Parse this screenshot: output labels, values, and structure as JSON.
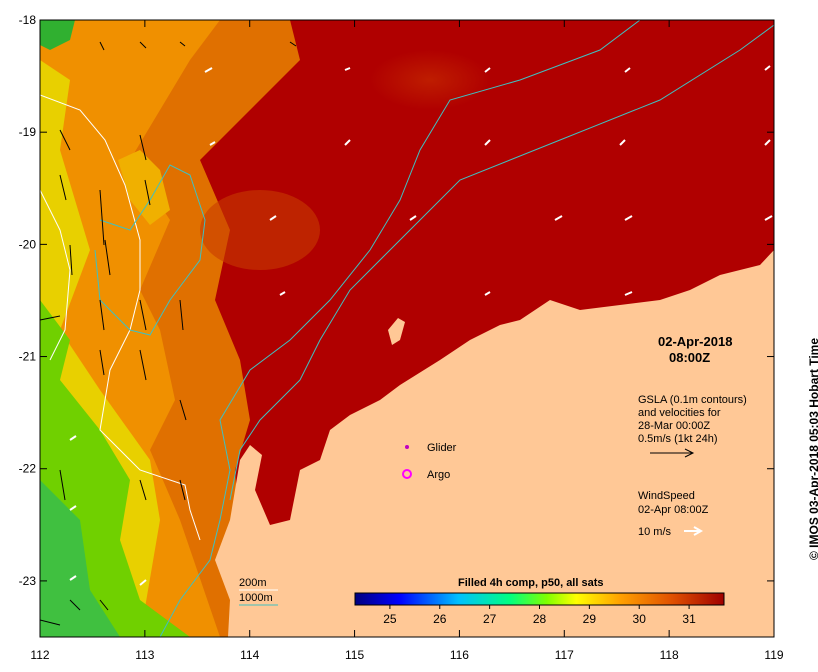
{
  "map": {
    "lon_range": [
      112,
      119
    ],
    "lat_range": [
      -23.5,
      -18
    ],
    "x_ticks": [
      "112",
      "113",
      "114",
      "115",
      "116",
      "117",
      "118",
      "119"
    ],
    "y_ticks": [
      "-18",
      "-19",
      "-20",
      "-21",
      "-22",
      "-23"
    ]
  },
  "date_line1": "02-Apr-2018",
  "date_line2": "08:00Z",
  "gsla": {
    "line1": "GSLA (0.1m contours)",
    "line2": "and velocities for",
    "line3": "28-Mar 00:00Z",
    "line4": "0.5m/s (1kt 24h)"
  },
  "wind": {
    "line1": "WindSpeed",
    "line2": "02-Apr 08:00Z",
    "line3": "10 m/s"
  },
  "legend": {
    "glider": "Glider",
    "argo": "Argo",
    "isobath_200": "200m",
    "isobath_1000": "1000m"
  },
  "colorbar": {
    "title": "Filled 4h comp, p50, all sats",
    "ticks": [
      "25",
      "26",
      "27",
      "28",
      "29",
      "30",
      "31"
    ],
    "range": [
      24.3,
      31.7
    ],
    "colors": [
      "#00007f",
      "#0000ff",
      "#00c0ff",
      "#00ff80",
      "#80ff00",
      "#ffff00",
      "#ffa000",
      "#e05000",
      "#a00000"
    ]
  },
  "credit": "© IMOS 03-Apr-2018 05:03 Hobart Time",
  "colors": {
    "land": "#ffc896",
    "sst_warm": "#b00000",
    "sst_mid": "#e07000",
    "sst_cool": "#70d000",
    "isobath_200": "#ffffff",
    "isobath_1000": "#40c0c0"
  }
}
